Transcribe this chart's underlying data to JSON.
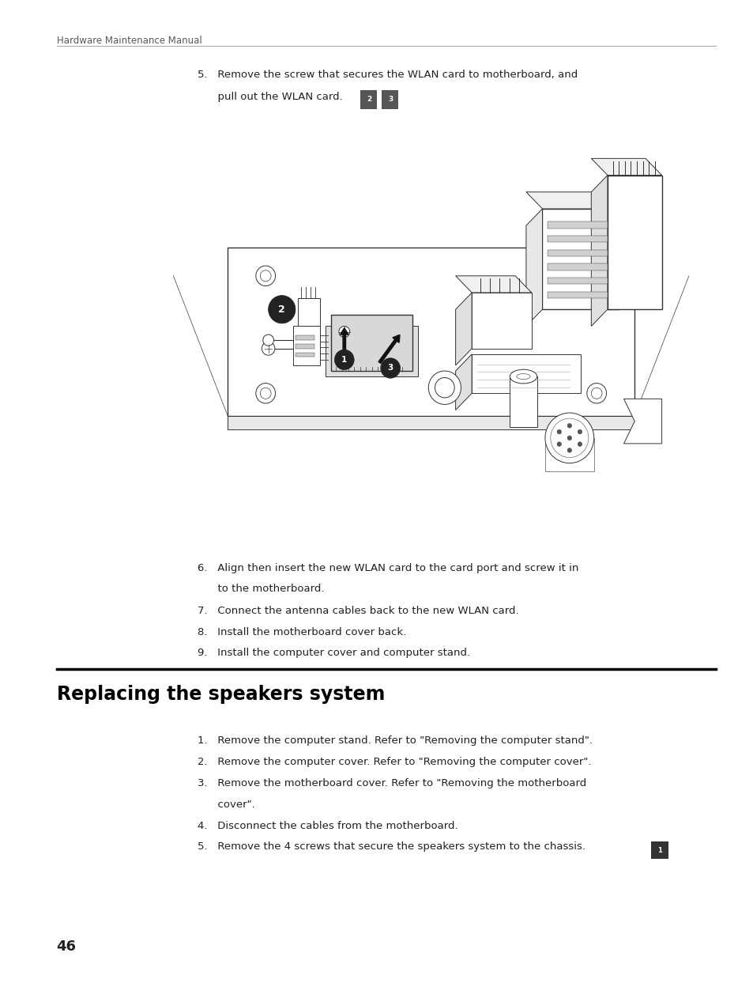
{
  "background_color": "#ffffff",
  "page_width": 9.54,
  "page_height": 12.43,
  "header_text": "Hardware Maintenance Manual",
  "step5_line1": "5.   Remove the screw that secures the WLAN card to motherboard, and",
  "step5_line2": "      pull out the WLAN card.",
  "step5_badges": [
    "2",
    "3"
  ],
  "steps_6_9": [
    "6.   Align then insert the new WLAN card to the card port and screw it in",
    "      to the motherboard.",
    "7.   Connect the antenna cables back to the new WLAN card.",
    "8.   Install the motherboard cover back.",
    "9.   Install the computer cover and computer stand."
  ],
  "section_title": "Replacing the speakers system",
  "new_steps": [
    "1.   Remove the computer stand. Refer to \"Removing the computer stand\".",
    "2.   Remove the computer cover. Refer to \"Removing the computer cover\".",
    "3.   Remove the motherboard cover. Refer to \"Removing the motherboard",
    "      cover\".",
    "4.   Disconnect the cables from the motherboard.",
    "5.   Remove the 4 screws that secure the speakers system to the chassis."
  ],
  "last_step_badge": "1",
  "page_number": "46",
  "text_color": "#231f20",
  "header_color": "#5a5a5a",
  "section_title_color": "#000000",
  "body_fontsize": 9.5,
  "header_fontsize": 8.5,
  "section_title_fontsize": 17,
  "page_number_fontsize": 13,
  "line_color": "#333333",
  "diagram_bg": "#ffffff"
}
